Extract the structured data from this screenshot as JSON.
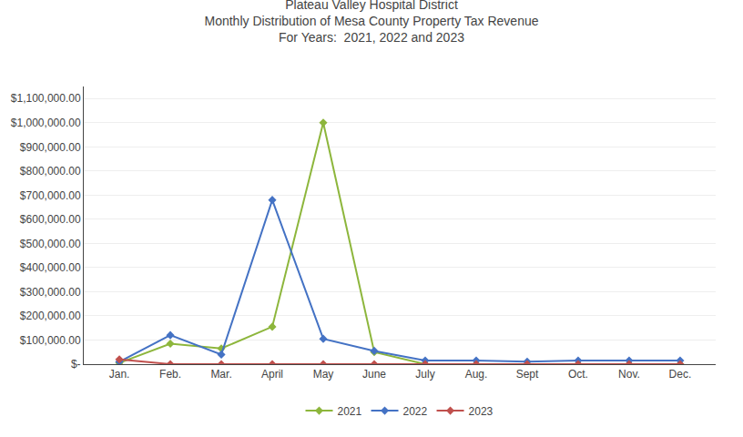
{
  "chart_data": {
    "type": "line",
    "title": "Plateau Valley Hospital District\nMonthly Distribution of Mesa County Property Tax Revenue\nFor Years:  2021, 2022 and 2023",
    "categories": [
      "Jan.",
      "Feb.",
      "Mar.",
      "April",
      "May",
      "June",
      "July",
      "Aug.",
      "Sept",
      "Oct.",
      "Nov.",
      "Dec."
    ],
    "series": [
      {
        "name": "2021",
        "color": "#8db63c",
        "marker": "diamond",
        "values": [
          5000,
          85000,
          65000,
          155000,
          1000000,
          50000,
          0,
          0,
          0,
          0,
          0,
          0
        ]
      },
      {
        "name": "2022",
        "color": "#4472c4",
        "marker": "diamond",
        "values": [
          10000,
          120000,
          40000,
          680000,
          105000,
          55000,
          15000,
          15000,
          10000,
          15000,
          15000,
          15000
        ]
      },
      {
        "name": "2023",
        "color": "#c0504d",
        "marker": "diamond",
        "values": [
          20000,
          0,
          0,
          0,
          0,
          0,
          0,
          0,
          0,
          0,
          0,
          0
        ]
      }
    ],
    "ylim": [
      0,
      1150000
    ],
    "yticks": [
      {
        "value": 0,
        "label": "$-"
      },
      {
        "value": 100000,
        "label": "$100,000.00"
      },
      {
        "value": 200000,
        "label": "$200,000.00"
      },
      {
        "value": 300000,
        "label": "$300,000.00"
      },
      {
        "value": 400000,
        "label": "$400,000.00"
      },
      {
        "value": 500000,
        "label": "$500,000.00"
      },
      {
        "value": 600000,
        "label": "$600,000.00"
      },
      {
        "value": 700000,
        "label": "$700,000.00"
      },
      {
        "value": 800000,
        "label": "$800,000.00"
      },
      {
        "value": 900000,
        "label": "$900,000.00"
      },
      {
        "value": 1000000,
        "label": "$1,000,000.00"
      },
      {
        "value": 1100000,
        "label": "$1,100,000.00"
      }
    ],
    "grid": true,
    "legend": "bottom"
  }
}
